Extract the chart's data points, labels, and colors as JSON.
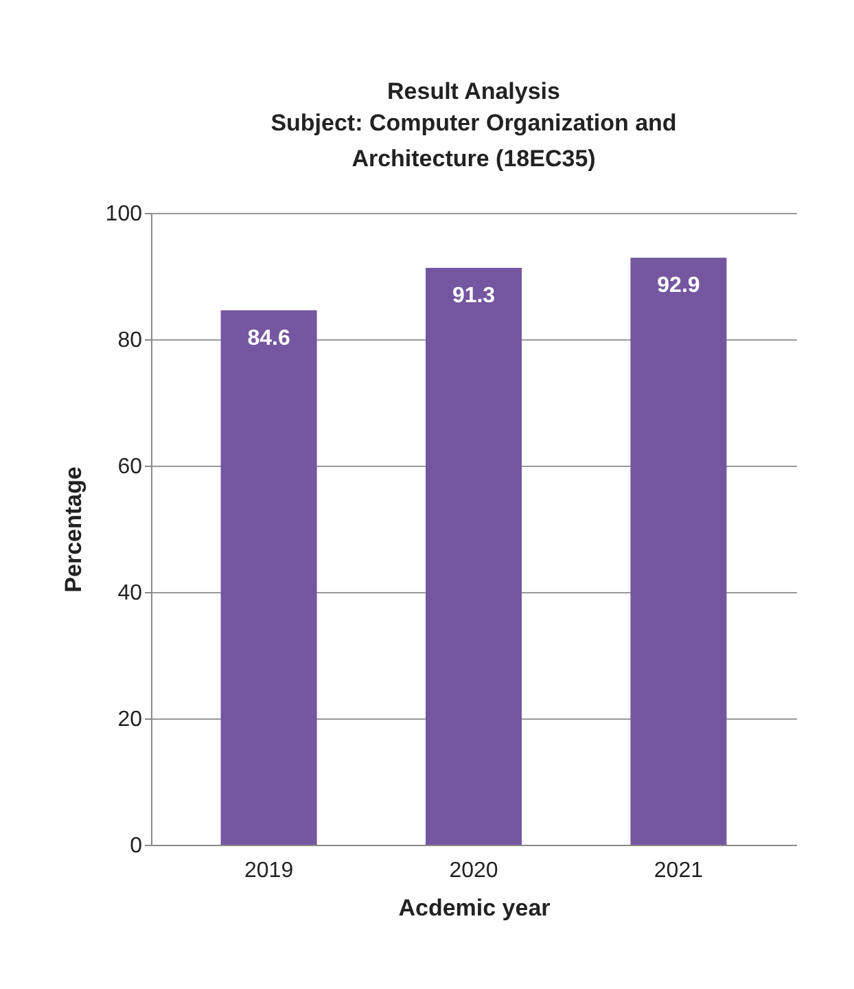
{
  "chart_data": {
    "type": "bar",
    "title": "Result Analysis",
    "subtitle": "Subject: Computer Organization and Architecture (18EC35)",
    "xlabel": "Acdemic year",
    "ylabel": "Percentage",
    "categories": [
      "2019",
      "2020",
      "2021"
    ],
    "values": [
      84.6,
      91.3,
      92.9
    ],
    "color": "#7556a0",
    "ylim": [
      0,
      100
    ],
    "yticks": [
      0,
      20,
      40,
      60,
      80,
      100
    ],
    "grid": "y",
    "data_labels": true
  }
}
